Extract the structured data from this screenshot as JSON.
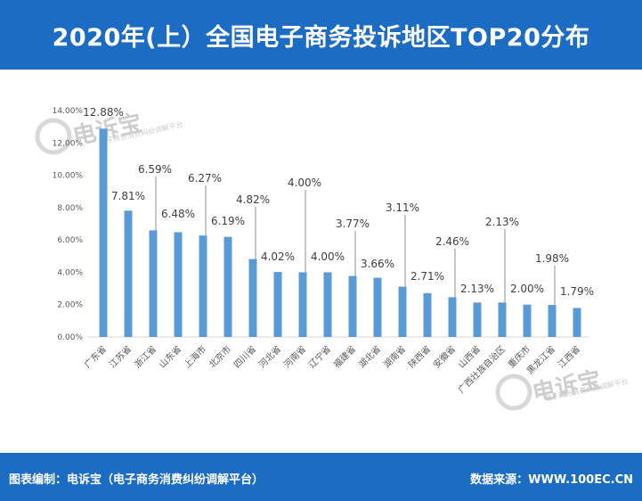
{
  "header": {
    "title": "2020年(上）全国电子商务投诉地区TOP20分布"
  },
  "watermark": {
    "brand": "电诉宝",
    "platform": "电子商务消费纠纷调解平台"
  },
  "footer": {
    "left_text": "图表编制：电诉宝（电子商务消费纠纷调解平台）",
    "right_text": "数据来源：WWW.100EC.CN"
  },
  "colors": {
    "accent": "#1c6cc4",
    "bar": "#5b9bd5",
    "axis_text": "#595959",
    "label_text": "#404040"
  },
  "chart_data": {
    "type": "bar",
    "title": "2020年(上）全国电子商务投诉地区TOP20分布",
    "categories": [
      "广东省",
      "江苏省",
      "浙江省",
      "山东省",
      "上海市",
      "北京市",
      "四川省",
      "河北省",
      "河南省",
      "辽宁省",
      "福建省",
      "湖北省",
      "湖南省",
      "陕西省",
      "安徽省",
      "山西省",
      "广西壮族自治区",
      "重庆市",
      "黑龙江省",
      "江西省"
    ],
    "values": [
      12.88,
      7.81,
      6.59,
      6.48,
      6.27,
      6.19,
      4.82,
      4.02,
      4.0,
      4.0,
      3.77,
      3.66,
      3.11,
      2.71,
      2.46,
      2.13,
      2.13,
      2.0,
      1.98,
      1.79
    ],
    "value_labels": [
      "12.88%",
      "7.81%",
      "6.59%",
      "6.48%",
      "6.27%",
      "6.19%",
      "4.82%",
      "4.02%",
      "4.00%",
      "4.00%",
      "3.77%",
      "3.66%",
      "3.11%",
      "2.71%",
      "2.46%",
      "2.13%",
      "2.13%",
      "2.00%",
      "1.98%",
      "1.79%"
    ],
    "ylim": [
      0,
      14
    ],
    "yticks": [
      0,
      2,
      4,
      6,
      8,
      10,
      12,
      14
    ],
    "ytick_labels": [
      "0.00%",
      "2.00%",
      "4.00%",
      "6.00%",
      "8.00%",
      "10.00%",
      "12.00%",
      "14.00%"
    ],
    "xlabel": "",
    "ylabel": "",
    "grid": false,
    "legend": "none"
  }
}
